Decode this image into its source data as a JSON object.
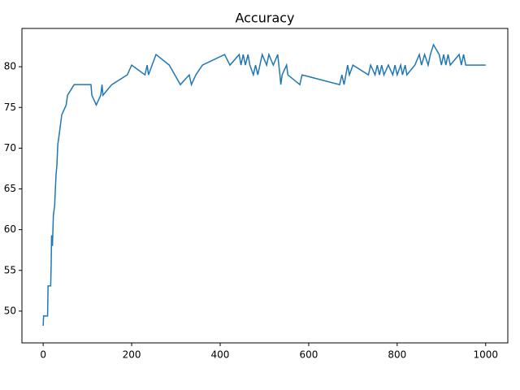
{
  "chart_data": {
    "type": "line",
    "title": "Accuracy",
    "x": [
      0,
      1,
      10,
      11,
      17,
      18,
      19,
      21,
      23,
      26,
      29,
      31,
      33,
      36,
      42,
      52,
      55,
      70,
      108,
      110,
      120,
      130,
      133,
      135,
      155,
      190,
      200,
      230,
      235,
      238,
      255,
      285,
      310,
      330,
      335,
      345,
      360,
      410,
      422,
      443,
      447,
      452,
      457,
      463,
      467,
      475,
      480,
      485,
      495,
      505,
      510,
      520,
      530,
      535,
      537,
      540,
      550,
      553,
      580,
      585,
      670,
      675,
      680,
      688,
      692,
      700,
      735,
      740,
      750,
      755,
      760,
      765,
      770,
      780,
      790,
      795,
      800,
      808,
      812,
      818,
      822,
      840,
      850,
      855,
      862,
      870,
      875,
      882,
      895,
      900,
      905,
      910,
      915,
      920,
      940,
      945,
      950,
      955,
      1000
    ],
    "series": [
      {
        "name": "accuracy",
        "color": "#1f77b4",
        "values": [
          48.2,
          49.4,
          49.4,
          53.1,
          53.1,
          55.6,
          59.3,
          58,
          61.7,
          63,
          66.7,
          67.9,
          70.4,
          71.6,
          74.1,
          75.3,
          76.5,
          77.8,
          77.8,
          76.5,
          75.3,
          76.5,
          77.8,
          76.5,
          77.8,
          79,
          80.2,
          79,
          80.2,
          79,
          81.5,
          80.2,
          77.8,
          79,
          77.8,
          79,
          80.2,
          81.5,
          80.2,
          81.5,
          80.2,
          81.5,
          80.2,
          81.5,
          80.2,
          79,
          80.2,
          79,
          81.5,
          80.2,
          81.5,
          80.2,
          81.5,
          79,
          77.8,
          79,
          80.2,
          79,
          77.8,
          79,
          77.8,
          79,
          77.8,
          80.2,
          79,
          80.2,
          79,
          80.2,
          79,
          80.2,
          79,
          80.2,
          79,
          80.2,
          79,
          80.2,
          79,
          80.2,
          79,
          80.2,
          79,
          80.2,
          81.5,
          80.2,
          81.5,
          80.2,
          81.5,
          82.7,
          81.5,
          80.2,
          81.5,
          80.2,
          81.5,
          80.2,
          81.5,
          80.2,
          81.5,
          80.2,
          80.2
        ]
      }
    ],
    "xlim": [
      -48,
      1050
    ],
    "ylim": [
      46.1,
      84.7
    ],
    "xticks": [
      0,
      200,
      400,
      600,
      800,
      1000
    ],
    "yticks": [
      50,
      55,
      60,
      65,
      70,
      75,
      80
    ]
  }
}
